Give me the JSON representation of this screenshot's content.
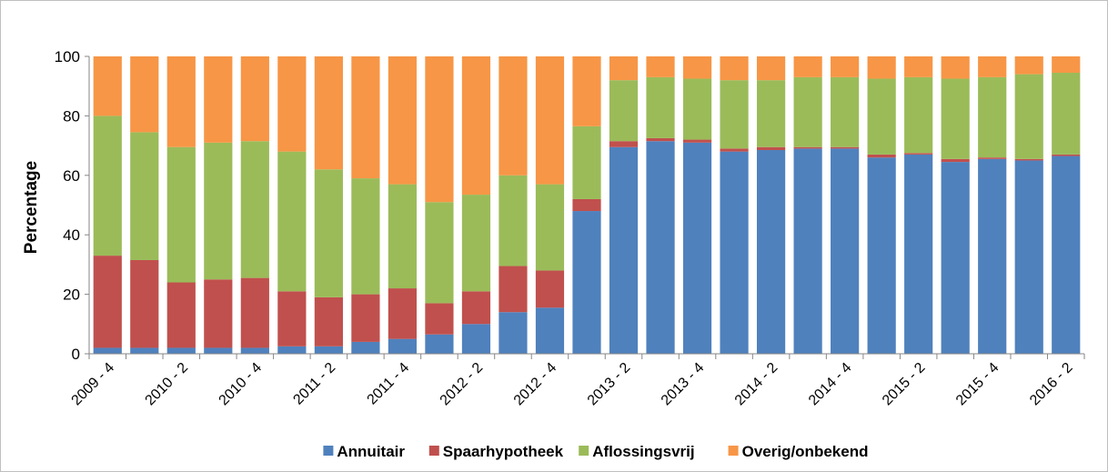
{
  "chart_data": {
    "type": "stacked_bar",
    "y_label": "Percentage",
    "categories": [
      "2009 - 4",
      null,
      "2010 - 2",
      null,
      "2010 - 4",
      null,
      "2011 - 2",
      null,
      "2011 - 4",
      null,
      "2012 - 2",
      null,
      "2012 - 4",
      null,
      "2013 - 2",
      null,
      "2013 - 4",
      null,
      "2014 - 2",
      null,
      "2014 - 4",
      null,
      "2015 - 2",
      null,
      "2015 - 4",
      null,
      "2016 - 2"
    ],
    "series": [
      {
        "name": "Annuitair",
        "color": "#4f81bd",
        "values": [
          2,
          2,
          2,
          2,
          2,
          2.5,
          2.5,
          4,
          5,
          6.5,
          10,
          14,
          15.5,
          48,
          69.5,
          71.5,
          71,
          68,
          68.5,
          69,
          69,
          66,
          67,
          64.5,
          65.5,
          65,
          66.5
        ]
      },
      {
        "name": "Spaarhypotheek",
        "color": "#c0504d",
        "values": [
          31,
          29.5,
          22,
          23,
          23.5,
          18.5,
          16.5,
          16,
          17,
          10.5,
          11,
          15.5,
          12.5,
          4,
          2,
          1,
          1,
          1,
          1,
          0.5,
          0.5,
          1,
          0.5,
          1,
          0.5,
          0.5,
          0.5
        ]
      },
      {
        "name": "Aflossingsvrij",
        "color": "#9bbb59",
        "values": [
          47,
          43,
          45.5,
          46,
          46,
          47,
          43,
          39,
          35,
          34,
          32.5,
          30.5,
          29,
          24.5,
          20.5,
          20.5,
          20.5,
          23,
          22.5,
          23.5,
          23.5,
          25.5,
          25.5,
          27,
          27,
          28.5,
          27.5
        ]
      },
      {
        "name": "Overig/onbekend",
        "color": "#f79646",
        "values": [
          20,
          25.5,
          30.5,
          29,
          28.5,
          32,
          38,
          41,
          43,
          49,
          46.5,
          40,
          43,
          23.5,
          8,
          7,
          7.5,
          8,
          8,
          7,
          7,
          7.5,
          7,
          7.5,
          7,
          6,
          5.5
        ]
      }
    ],
    "ylim": [
      0,
      100
    ],
    "yticks": [
      0,
      20,
      40,
      60,
      80,
      100
    ],
    "grid": false,
    "legend": "bottom"
  }
}
